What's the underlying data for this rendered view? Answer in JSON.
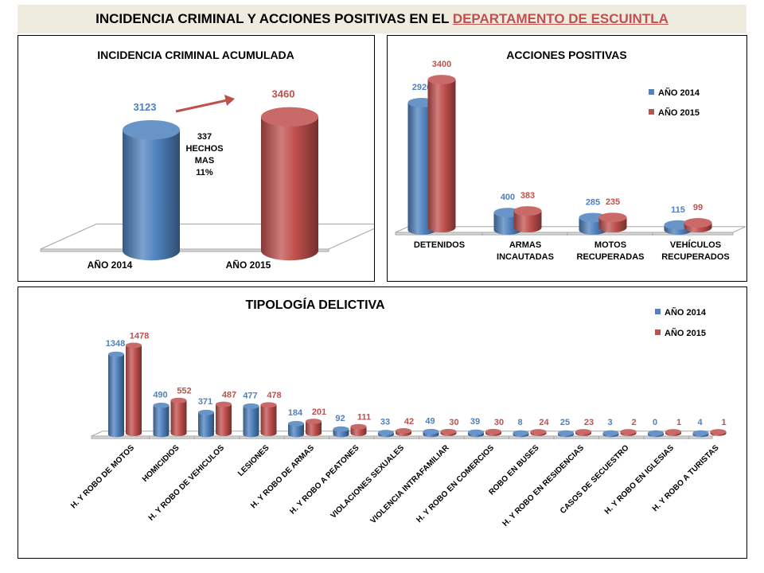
{
  "header": {
    "prefix": "INCIDENCIA CRIMINAL Y ACCIONES POSITIVAS EN EL ",
    "highlight": "DEPARTAMENTO DE ESCUINTLA"
  },
  "colors": {
    "series_2014": "#4f81bd",
    "series_2015": "#c0504d"
  },
  "chart_data": [
    {
      "type": "bar",
      "title": "INCIDENCIA CRIMINAL ACUMULADA",
      "categories": [
        "AÑO 2014",
        "AÑO 2015"
      ],
      "values": [
        3123,
        3460
      ],
      "annotation": [
        "337",
        "HECHOS",
        "MAS",
        "11%"
      ]
    },
    {
      "type": "bar",
      "title": "ACCIONES POSITIVAS",
      "categories": [
        [
          "DETENIDOS"
        ],
        [
          "ARMAS",
          "INCAUTADAS"
        ],
        [
          "MOTOS",
          "RECUPERADAS"
        ],
        [
          "VEHÍCULOS",
          "RECUPERADOS"
        ]
      ],
      "series": [
        {
          "name": "AÑO 2014",
          "values": [
            2926,
            400,
            285,
            115
          ]
        },
        {
          "name": "AÑO 2015",
          "values": [
            3400,
            383,
            235,
            99
          ]
        }
      ],
      "legend": "right"
    },
    {
      "type": "bar",
      "title": "TIPOLOGÍA DELICTIVA",
      "categories": [
        "H. Y ROBO DE MOTOS",
        "HOMICIDIOS",
        "H. Y ROBO DE VEHICULOS",
        "LESIONES",
        "H. Y ROBO DE ARMAS",
        "H. Y ROBO A PEATONES",
        "VIOLACIONES SEXUALES",
        "VIOLENCIA INTRAFAMILIAR",
        "H. Y ROBO EN COMERCIOS",
        "ROBO EN BUSES",
        "H. Y ROBO EN RESIDENCIAS",
        "CASOS DE SECUESTRO",
        "H. Y ROBO EN IGLESIAS",
        "H. Y ROBO A TURISTAS"
      ],
      "series": [
        {
          "name": "AÑO 2014",
          "values": [
            1348,
            490,
            371,
            477,
            184,
            92,
            33,
            49,
            39,
            8,
            25,
            3,
            0,
            4
          ]
        },
        {
          "name": "AÑO 2015",
          "values": [
            1478,
            552,
            487,
            478,
            201,
            111,
            42,
            30,
            30,
            24,
            23,
            2,
            1,
            1
          ]
        }
      ],
      "legend": "top-right"
    }
  ]
}
